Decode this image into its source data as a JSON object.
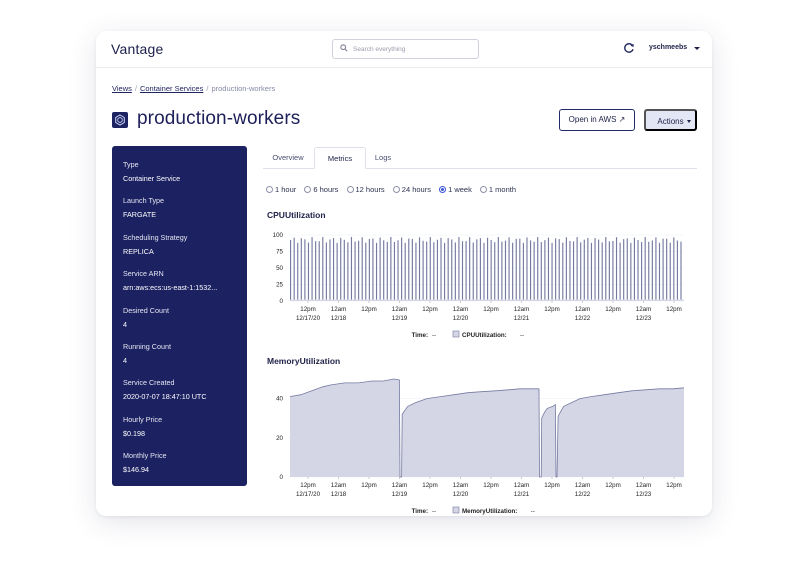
{
  "app": {
    "brand": "Vantage",
    "search_placeholder": "Search everything",
    "user": "yschmeebs"
  },
  "breadcrumb": [
    "Views",
    "Container Services",
    "production-workers"
  ],
  "page_title": "production-workers",
  "buttons": {
    "open_aws": "Open in AWS ↗",
    "actions": "Actions"
  },
  "details": [
    {
      "label": "Type",
      "value": "Container Service"
    },
    {
      "label": "Launch Type",
      "value": "FARGATE"
    },
    {
      "label": "Scheduling Strategy",
      "value": "REPLICA"
    },
    {
      "label": "Service ARN",
      "value": "arn:aws:ecs:us-east-1:1532..."
    },
    {
      "label": "Desired Count",
      "value": "4"
    },
    {
      "label": "Running Count",
      "value": "4"
    },
    {
      "label": "Service Created",
      "value": "2020-07-07 18:47:10 UTC"
    },
    {
      "label": "Hourly Price",
      "value": "$0.198"
    },
    {
      "label": "Monthly Price",
      "value": "$146.94"
    }
  ],
  "tabs": [
    {
      "label": "Overview",
      "active": false
    },
    {
      "label": "Metrics",
      "active": true
    },
    {
      "label": "Logs",
      "active": false
    }
  ],
  "time_ranges": [
    {
      "label": "1 hour",
      "selected": false
    },
    {
      "label": "6 hours",
      "selected": false
    },
    {
      "label": "12 hours",
      "selected": false
    },
    {
      "label": "24 hours",
      "selected": false
    },
    {
      "label": "1 week",
      "selected": true
    },
    {
      "label": "1 month",
      "selected": false
    }
  ],
  "colors": {
    "navy": "#1b2161",
    "series_fill": "#d4d6e6",
    "series_stroke": "#757aa0",
    "radio_on": "#3a55d8"
  },
  "chart_data": [
    {
      "type": "area",
      "title": "CPUUtilization",
      "ylim": [
        0,
        100
      ],
      "yticks": [
        0,
        25,
        50,
        75,
        100
      ],
      "x_tick_labels": [
        [
          "12pm",
          "12/17/20"
        ],
        [
          "12am",
          "12/18"
        ],
        [
          "12pm",
          ""
        ],
        [
          "12am",
          "12/19"
        ],
        [
          "12pm",
          ""
        ],
        [
          "12am",
          "12/20"
        ],
        [
          "12pm",
          ""
        ],
        [
          "12am",
          "12/21"
        ],
        [
          "12pm",
          ""
        ],
        [
          "12am",
          "12/22"
        ],
        [
          "12pm",
          ""
        ],
        [
          "12am",
          "12/23"
        ],
        [
          "12pm",
          ""
        ]
      ],
      "footer": {
        "time_label": "Time:",
        "time_value": "--",
        "series_label": "CPUUtilization:",
        "series_value": "--"
      },
      "series": [
        {
          "name": "CPUUtilization",
          "pattern": "periodic spikes",
          "baseline": 2,
          "peak_range": [
            88,
            97
          ],
          "spike_count": 110
        }
      ]
    },
    {
      "type": "area",
      "title": "MemoryUtilization",
      "ylim": [
        0,
        50
      ],
      "yticks": [
        0,
        20,
        40
      ],
      "x_tick_labels": [
        [
          "12pm",
          "12/17/20"
        ],
        [
          "12am",
          "12/18"
        ],
        [
          "12pm",
          ""
        ],
        [
          "12am",
          "12/19"
        ],
        [
          "12pm",
          ""
        ],
        [
          "12am",
          "12/20"
        ],
        [
          "12pm",
          ""
        ],
        [
          "12am",
          "12/21"
        ],
        [
          "12pm",
          ""
        ],
        [
          "12am",
          "12/22"
        ],
        [
          "12pm",
          ""
        ],
        [
          "12am",
          "12/23"
        ],
        [
          "12pm",
          ""
        ]
      ],
      "footer": {
        "time_label": "Time:",
        "time_value": "--",
        "series_label": "MemoryUtilization:",
        "series_value": "--"
      },
      "series": [
        {
          "name": "MemoryUtilization",
          "points": [
            [
              0,
              41
            ],
            [
              4,
              42
            ],
            [
              8,
              44
            ],
            [
              12,
              46
            ],
            [
              15,
              47
            ],
            [
              20,
              48
            ],
            [
              25,
              48
            ],
            [
              30,
              49
            ],
            [
              34,
              49
            ],
            [
              38,
              50
            ],
            [
              40,
              49.5
            ],
            [
              40.2,
              0
            ],
            [
              40.8,
              0
            ],
            [
              41,
              32
            ],
            [
              43,
              36
            ],
            [
              46,
              38
            ],
            [
              50,
              40
            ],
            [
              55,
              41
            ],
            [
              60,
              42
            ],
            [
              65,
              43
            ],
            [
              70,
              43.5
            ],
            [
              75,
              44
            ],
            [
              80,
              44.5
            ],
            [
              84,
              45
            ],
            [
              88,
              45
            ],
            [
              91,
              45
            ],
            [
              91.2,
              0
            ],
            [
              91.8,
              0
            ],
            [
              92,
              30
            ],
            [
              93,
              33
            ],
            [
              94,
              35
            ],
            [
              96,
              36
            ],
            [
              97,
              37
            ],
            [
              97.2,
              0
            ],
            [
              97.6,
              0
            ],
            [
              98,
              31
            ],
            [
              100,
              36
            ],
            [
              103,
              38
            ],
            [
              106,
              40
            ],
            [
              110,
              41
            ],
            [
              115,
              42
            ],
            [
              120,
              43
            ],
            [
              125,
              44
            ],
            [
              130,
              44.5
            ],
            [
              135,
              45
            ],
            [
              140,
              45
            ],
            [
              144,
              45.5
            ]
          ]
        }
      ]
    }
  ]
}
